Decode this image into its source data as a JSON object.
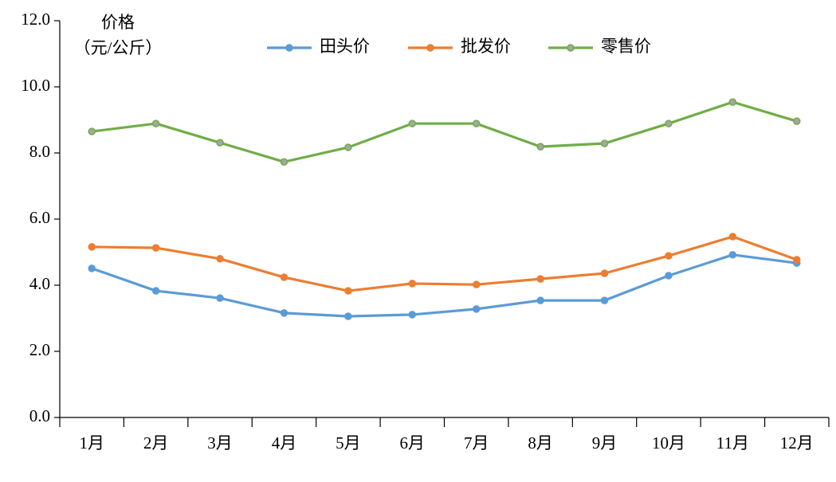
{
  "chart_data": {
    "type": "line",
    "y_label": [
      "价格",
      "（元/公斤）"
    ],
    "categories": [
      "1月",
      "2月",
      "3月",
      "4月",
      "5月",
      "6月",
      "7月",
      "8月",
      "9月",
      "10月",
      "11月",
      "12月"
    ],
    "series": [
      {
        "name": "田头价",
        "color": "#5b9bd5",
        "values": [
          4.51,
          3.83,
          3.61,
          3.16,
          3.06,
          3.11,
          3.28,
          3.54,
          3.54,
          4.29,
          4.92,
          4.67
        ]
      },
      {
        "name": "批发价",
        "color": "#ed7d31",
        "values": [
          5.16,
          5.13,
          4.8,
          4.24,
          3.83,
          4.05,
          4.02,
          4.19,
          4.36,
          4.89,
          5.47,
          4.77
        ]
      },
      {
        "name": "零售价",
        "color": "#70ad47",
        "values": [
          8.65,
          8.89,
          8.31,
          7.73,
          8.17,
          8.89,
          8.89,
          8.19,
          8.29,
          8.89,
          9.54,
          8.96
        ]
      }
    ],
    "ylim": [
      0,
      12
    ],
    "yticks": [
      {
        "value": 0,
        "label": "0.0"
      },
      {
        "value": 2,
        "label": "2.0"
      },
      {
        "value": 4,
        "label": "4.0"
      },
      {
        "value": 6,
        "label": "6.0"
      },
      {
        "value": 8,
        "label": "8.0"
      },
      {
        "value": 10,
        "label": "10.0"
      },
      {
        "value": 12,
        "label": "12.0"
      }
    ],
    "grid": false,
    "legend": "top"
  }
}
